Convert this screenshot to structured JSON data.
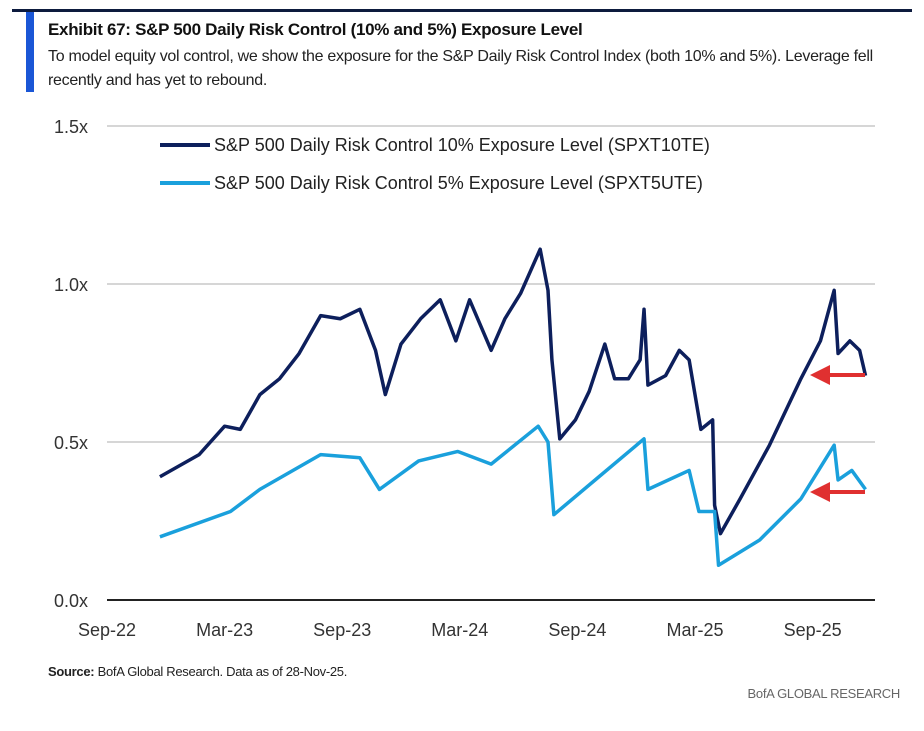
{
  "header": {
    "title": "Exhibit 67: S&P 500 Daily Risk Control (10% and 5%) Exposure Level",
    "subtitle": "To model equity vol control, we show the exposure for the S&P Daily Risk Control Index (both 10% and 5%).  Leverage fell recently and has yet to rebound."
  },
  "footer": {
    "source_label": "Source:",
    "source_text": " BofA Global Research. Data as of 28-Nov-25.",
    "brand": "BofA GLOBAL RESEARCH"
  },
  "chart_data": {
    "type": "line",
    "title": "Exhibit 67: S&P 500 Daily Risk Control (10% and 5%) Exposure Level",
    "xlabel": "",
    "ylabel": "",
    "ylim": [
      0,
      1.5
    ],
    "grid": true,
    "legend": "top-left",
    "x_unit": "months since Sep-22",
    "xticks": [
      "Sep-22",
      "Mar-23",
      "Sep-23",
      "Mar-24",
      "Sep-24",
      "Mar-25",
      "Sep-25"
    ],
    "yticks": [
      "0.0x",
      "0.5x",
      "1.0x",
      "1.5x"
    ],
    "series": [
      {
        "name": "S&P 500 Daily Risk Control 10% Exposure Level (SPXT10TE)",
        "color": "#0d1f5c",
        "points": [
          [
            2.7,
            0.39
          ],
          [
            4.7,
            0.46
          ],
          [
            6.0,
            0.55
          ],
          [
            6.8,
            0.54
          ],
          [
            7.8,
            0.65
          ],
          [
            8.8,
            0.7
          ],
          [
            9.8,
            0.78
          ],
          [
            10.9,
            0.9
          ],
          [
            11.9,
            0.89
          ],
          [
            12.9,
            0.92
          ],
          [
            13.7,
            0.79
          ],
          [
            14.2,
            0.65
          ],
          [
            15.0,
            0.81
          ],
          [
            16.0,
            0.89
          ],
          [
            17.0,
            0.95
          ],
          [
            17.8,
            0.82
          ],
          [
            18.5,
            0.95
          ],
          [
            19.6,
            0.79
          ],
          [
            20.3,
            0.89
          ],
          [
            21.1,
            0.97
          ],
          [
            22.1,
            1.11
          ],
          [
            22.5,
            0.98
          ],
          [
            22.7,
            0.76
          ],
          [
            23.1,
            0.51
          ],
          [
            23.9,
            0.57
          ],
          [
            24.6,
            0.66
          ],
          [
            25.4,
            0.81
          ],
          [
            25.9,
            0.7
          ],
          [
            26.6,
            0.7
          ],
          [
            27.2,
            0.76
          ],
          [
            27.4,
            0.92
          ],
          [
            27.6,
            0.68
          ],
          [
            28.5,
            0.71
          ],
          [
            29.2,
            0.79
          ],
          [
            29.7,
            0.76
          ],
          [
            30.3,
            0.54
          ],
          [
            30.9,
            0.57
          ],
          [
            31.0,
            0.3
          ],
          [
            31.3,
            0.21
          ],
          [
            32.3,
            0.32
          ],
          [
            33.8,
            0.49
          ],
          [
            35.4,
            0.7
          ],
          [
            36.4,
            0.82
          ],
          [
            37.1,
            0.98
          ],
          [
            37.3,
            0.78
          ],
          [
            37.9,
            0.82
          ],
          [
            38.4,
            0.79
          ],
          [
            38.7,
            0.71
          ]
        ]
      },
      {
        "name": "S&P 500 Daily Risk Control 5% Exposure Level (SPXT5UTE)",
        "color": "#1aa0dc",
        "points": [
          [
            2.7,
            0.2
          ],
          [
            6.3,
            0.28
          ],
          [
            7.8,
            0.35
          ],
          [
            10.9,
            0.46
          ],
          [
            12.9,
            0.45
          ],
          [
            13.9,
            0.35
          ],
          [
            15.9,
            0.44
          ],
          [
            17.9,
            0.47
          ],
          [
            19.6,
            0.43
          ],
          [
            22.0,
            0.55
          ],
          [
            22.5,
            0.5
          ],
          [
            22.8,
            0.27
          ],
          [
            25.1,
            0.39
          ],
          [
            27.4,
            0.51
          ],
          [
            27.6,
            0.35
          ],
          [
            29.7,
            0.41
          ],
          [
            30.2,
            0.28
          ],
          [
            31.0,
            0.28
          ],
          [
            31.2,
            0.11
          ],
          [
            33.3,
            0.19
          ],
          [
            35.4,
            0.32
          ],
          [
            37.1,
            0.49
          ],
          [
            37.3,
            0.38
          ],
          [
            38.0,
            0.41
          ],
          [
            38.7,
            0.35
          ]
        ]
      }
    ],
    "annotations": [
      {
        "type": "arrow",
        "color": "#e03030",
        "target": "10% series latest value"
      },
      {
        "type": "arrow",
        "color": "#e03030",
        "target": "5% series latest value"
      }
    ]
  }
}
